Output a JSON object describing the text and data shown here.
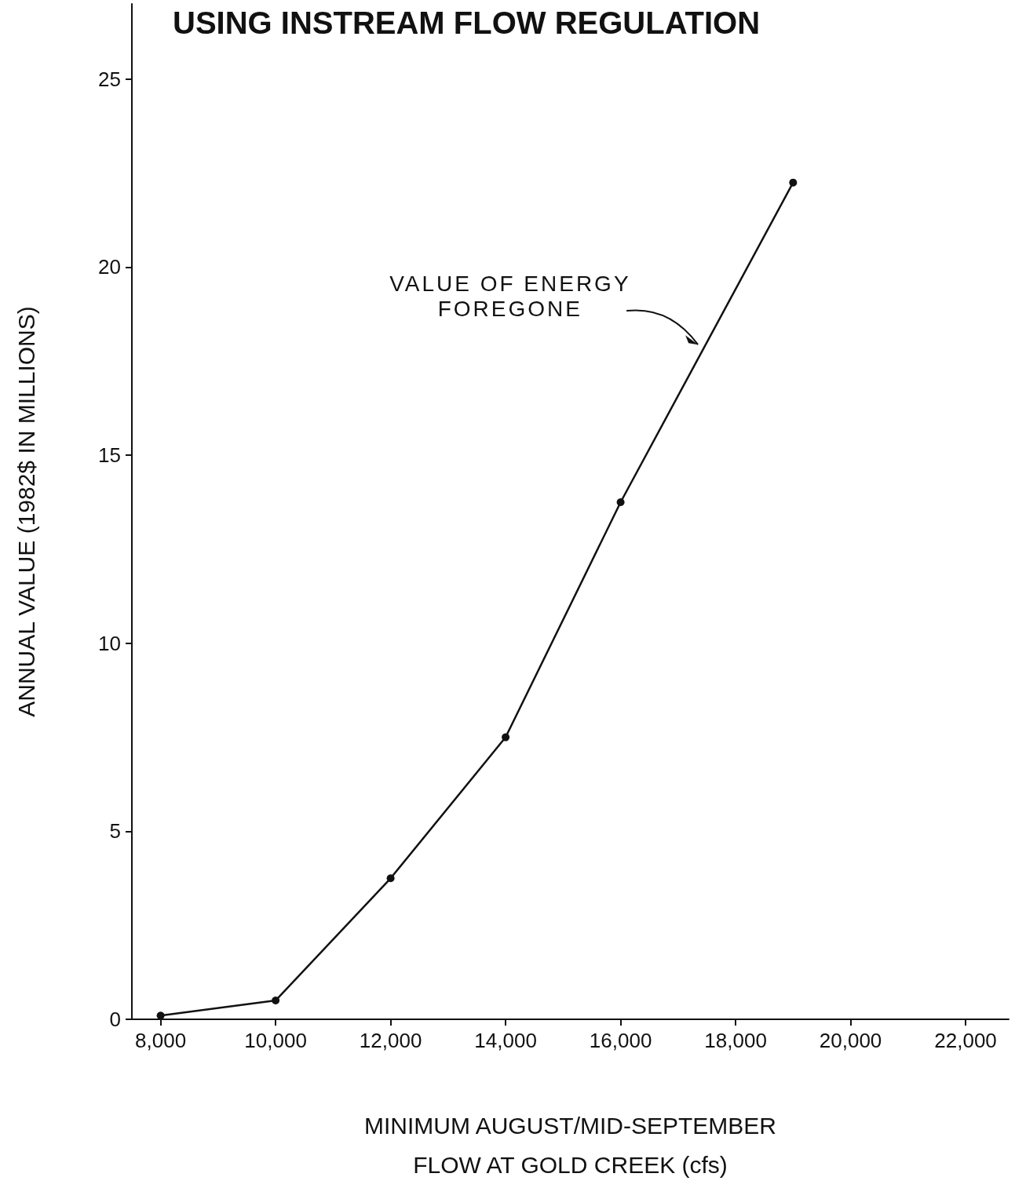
{
  "chart_data": {
    "type": "line",
    "title": "USING INSTREAM FLOW REGULATION",
    "xlabel": "MINIMUM AUGUST/MID-SEPTEMBER\nFLOW AT GOLD CREEK (cfs)",
    "ylabel": "ANNUAL VALUE (1982$ IN MILLIONS)",
    "x": [
      8000,
      10000,
      12000,
      14000,
      16000,
      19000
    ],
    "series": [
      {
        "color": "#111111",
        "values": [
          0.1,
          0.5,
          3.75,
          7.5,
          13.75,
          22.25
        ]
      }
    ],
    "xlim": [
      7500,
      22750
    ],
    "xticks": [
      {
        "value": 8000,
        "label": "8,000"
      },
      {
        "value": 10000,
        "label": "10,000"
      },
      {
        "value": 12000,
        "label": "12,000"
      },
      {
        "value": 14000,
        "label": "14,000"
      },
      {
        "value": 16000,
        "label": "16,000"
      },
      {
        "value": 18000,
        "label": "18,000"
      },
      {
        "value": 20000,
        "label": "20,000"
      },
      {
        "value": 22000,
        "label": "22,000"
      }
    ],
    "ylim": [
      0,
      27
    ],
    "yticks": [
      0,
      5,
      10,
      15,
      20,
      25
    ],
    "annotations": [
      {
        "text": "VALUE OF ENERGY\nFOREGONE",
        "x": 17400,
        "y": 17.9
      }
    ],
    "grid": false,
    "marker": "circle",
    "line_style": "solid"
  }
}
